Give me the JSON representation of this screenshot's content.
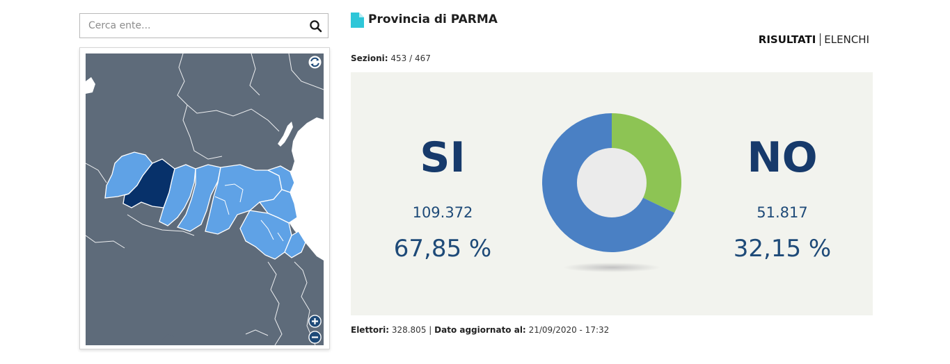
{
  "search": {
    "placeholder": "Cerca ente...",
    "icon": "search-icon"
  },
  "map": {
    "colors": {
      "region": "#5e6b7a",
      "province": "#5fa2e6",
      "selected": "#07316a",
      "sea": "#ffffff"
    },
    "controls": {
      "reset_icon": "refresh-icon",
      "zoom_in_icon": "plus-icon",
      "zoom_out_icon": "minus-icon"
    }
  },
  "header": {
    "title": "Provincia di PARMA",
    "icon": "document-icon",
    "icon_color": "#2ec6d8"
  },
  "tabs": {
    "risultati": "RISULTATI",
    "elenchi": "ELENCHI"
  },
  "sezioni": {
    "label": "Sezioni:",
    "value": "453 / 467"
  },
  "results": {
    "si": {
      "label": "SI",
      "votes": "109.372",
      "percent": "67,85 %",
      "color": "#4a80c4"
    },
    "no": {
      "label": "NO",
      "votes": "51.817",
      "percent": "32,15 %",
      "color": "#8dc454"
    }
  },
  "chart_data": {
    "type": "pie",
    "categories": [
      "SI",
      "NO"
    ],
    "values": [
      67.85,
      32.15
    ]
  },
  "footer": {
    "elettori_label": "Elettori:",
    "elettori_value": "328.805",
    "separator": "|",
    "updated_label": "Dato aggiornato al:",
    "updated_value": "21/09/2020 - 17:32"
  }
}
